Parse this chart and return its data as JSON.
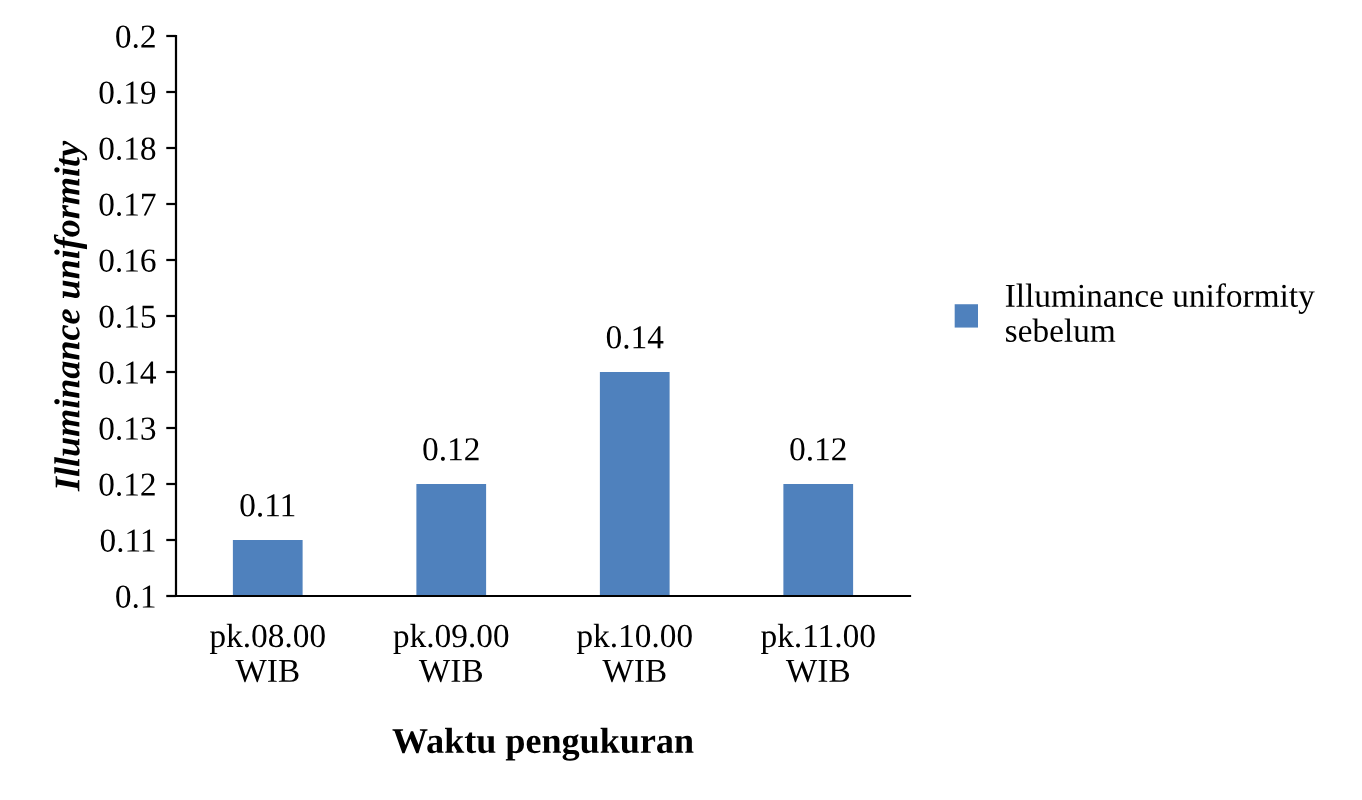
{
  "chart_data": {
    "type": "bar",
    "xlabel": "Waktu pengukuran",
    "ylabel": "Illuminance uniformity",
    "categories": [
      "pk.08.00\nWIB",
      "pk.09.00\nWIB",
      "pk.10.00\nWIB",
      "pk.11.00\nWIB"
    ],
    "series": [
      {
        "name": "Illuminance uniformity\nsebelum",
        "color": "#4f81bd",
        "values": [
          0.11,
          0.12,
          0.14,
          0.12
        ]
      }
    ],
    "ylim": [
      0.1,
      0.2
    ],
    "yticks": [
      0.1,
      0.11,
      0.12,
      0.13,
      0.14,
      0.15,
      0.16,
      0.17,
      0.18,
      0.19,
      0.2
    ],
    "data_labels": true,
    "grid": false,
    "legend": "right"
  }
}
